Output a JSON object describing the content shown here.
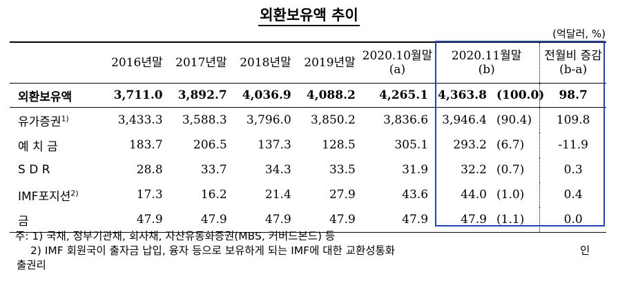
{
  "title": "외환보유액 추이",
  "unit": "(억달러, %)",
  "columns": [
    {
      "line1": "2016년말",
      "line2": ""
    },
    {
      "line1": "2017년말",
      "line2": ""
    },
    {
      "line1": "2018년말",
      "line2": ""
    },
    {
      "line1": "2019년말",
      "line2": ""
    },
    {
      "line1": "2020.10월말",
      "line2": "(a)"
    },
    {
      "line1": "2020.11월말",
      "line2": "(b)"
    },
    {
      "line1": "전월비 증감",
      "line2": "(b-a)"
    }
  ],
  "rows": [
    {
      "label": "외환보유액",
      "sup": "",
      "values": [
        "3,711.0",
        "3,892.7",
        "4,036.9",
        "4,088.2",
        "4,265.1",
        "4,363.8"
      ],
      "pct": "(100.0)",
      "change": "98.7"
    },
    {
      "label": "유가증권",
      "sup": "1)",
      "values": [
        "3,433.3",
        "3,588.3",
        "3,796.0",
        "3,850.2",
        "3,836.6",
        "3,946.4"
      ],
      "pct": "(90.4)",
      "change": "109.8"
    },
    {
      "label": "예 치 금",
      "sup": "",
      "values": [
        "183.7",
        "206.5",
        "137.3",
        "128.5",
        "305.1",
        "293.2"
      ],
      "pct": "(6.7)",
      "change": "-11.9"
    },
    {
      "label": "S D R",
      "sup": "",
      "values": [
        "28.8",
        "33.7",
        "34.3",
        "33.5",
        "31.9",
        "32.2"
      ],
      "pct": "(0.7)",
      "change": "0.3"
    },
    {
      "label": "IMF포지션",
      "sup": "2)",
      "values": [
        "17.3",
        "16.2",
        "21.4",
        "27.9",
        "43.6",
        "44.0"
      ],
      "pct": "(1.0)",
      "change": "0.4"
    },
    {
      "label": "금",
      "sup": "",
      "values": [
        "47.9",
        "47.9",
        "47.9",
        "47.9",
        "47.9",
        "47.9"
      ],
      "pct": "(1.1)",
      "change": "0.0"
    }
  ],
  "notes": {
    "note1": "주: 1) 국채, 정부기관채, 회사채, 자산유동화증권(MBS, 커버드본드) 등",
    "note2": "2) IMF 회원국이 출자금 납입, 융자 등으로 보유하게 되는 IMF에 대한 교환성통화",
    "note2_suffix": "인",
    "note3": "출권리"
  },
  "colors": {
    "highlight_border": "#1f3fcf"
  }
}
